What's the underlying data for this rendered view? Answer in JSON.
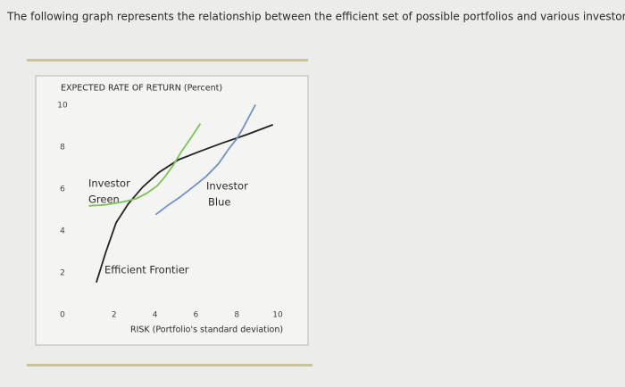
{
  "intro": "The following graph represents the relationship between the efficient set of possible portfolios and various investors.",
  "chart_data": {
    "type": "line",
    "ylabel": "EXPECTED RATE OF RETURN (Percent)",
    "xlabel": "RISK (Portfolio's standard deviation)",
    "xlim": [
      0,
      10
    ],
    "ylim": [
      0,
      10
    ],
    "xticks": [
      2,
      4,
      6,
      8,
      10
    ],
    "yticks": [
      0,
      2,
      4,
      6,
      8,
      10
    ],
    "series": [
      {
        "name": "Efficient Frontier",
        "color": "#222222",
        "x": [
          1.14,
          1.6,
          2.1,
          2.7,
          3.4,
          4.2,
          5.15,
          6.2,
          7.3,
          8.5,
          9.74
        ],
        "values": [
          1.57,
          3.0,
          4.4,
          5.3,
          6.1,
          6.8,
          7.4,
          7.8,
          8.2,
          8.6,
          9.06
        ]
      },
      {
        "name": "Investor Green",
        "color": "#7cc35a",
        "x": [
          0.79,
          1.6,
          2.5,
          3.1,
          3.6,
          4.1,
          4.5,
          4.9,
          5.3,
          5.8,
          6.2
        ],
        "values": [
          5.2,
          5.25,
          5.4,
          5.55,
          5.8,
          6.15,
          6.6,
          7.15,
          7.8,
          8.5,
          9.1
        ]
      },
      {
        "name": "Investor Blue",
        "color": "#6f93c9",
        "x": [
          4.06,
          4.6,
          5.2,
          5.8,
          6.5,
          7.1,
          7.6,
          8.0,
          8.3,
          8.6,
          8.9
        ],
        "values": [
          4.8,
          5.2,
          5.6,
          6.05,
          6.6,
          7.2,
          7.9,
          8.4,
          8.9,
          9.45,
          10.0
        ]
      }
    ],
    "annotations": [
      [
        "Investor",
        "Green"
      ],
      [
        "Investor",
        "Blue"
      ],
      [
        "Efficient Frontier"
      ]
    ]
  }
}
